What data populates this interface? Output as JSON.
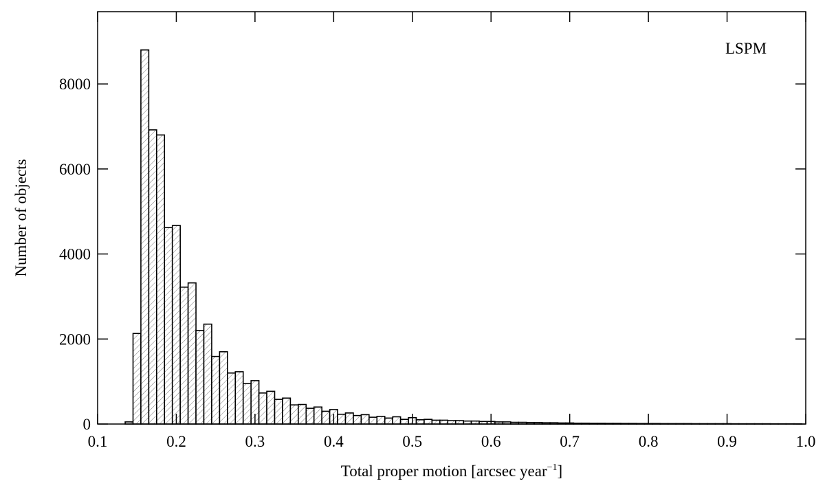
{
  "chart_data": {
    "type": "histogram",
    "xlabel": [
      "Total proper motion [arcsec year",
      "−1",
      "]"
    ],
    "ylabel": "Number of objects",
    "annotation": "LSPM",
    "color": "#000000",
    "bins": [
      0.135,
      0.145,
      0.155,
      0.165,
      0.175,
      0.185,
      0.195,
      0.205,
      0.215,
      0.225,
      0.235,
      0.245,
      0.255,
      0.265,
      0.275,
      0.285,
      0.295,
      0.305,
      0.315,
      0.325,
      0.335,
      0.345,
      0.355,
      0.365,
      0.375,
      0.385,
      0.395,
      0.405,
      0.415,
      0.425,
      0.435,
      0.445,
      0.455,
      0.465,
      0.475,
      0.485,
      0.495,
      0.505,
      0.515,
      0.525,
      0.535,
      0.545,
      0.555,
      0.565,
      0.575,
      0.585,
      0.595,
      0.605,
      0.615,
      0.625,
      0.635,
      0.645,
      0.655,
      0.665,
      0.675,
      0.685,
      0.695,
      0.705,
      0.715,
      0.725,
      0.735,
      0.745,
      0.755,
      0.765,
      0.775,
      0.785,
      0.795,
      0.805,
      0.815,
      0.825,
      0.835,
      0.845,
      0.855,
      0.865,
      0.875,
      0.885,
      0.895,
      0.905,
      0.915,
      0.925,
      0.935,
      0.945,
      0.955,
      0.965,
      0.975,
      0.985,
      0.995
    ],
    "values": [
      50,
      2130,
      8800,
      6920,
      6800,
      4620,
      4670,
      3220,
      3320,
      2200,
      2350,
      1590,
      1700,
      1200,
      1230,
      950,
      1020,
      730,
      770,
      580,
      610,
      450,
      460,
      370,
      400,
      300,
      340,
      230,
      260,
      200,
      220,
      160,
      180,
      140,
      170,
      110,
      150,
      100,
      110,
      90,
      90,
      80,
      80,
      70,
      70,
      60,
      60,
      50,
      50,
      40,
      40,
      35,
      35,
      30,
      30,
      25,
      25,
      20,
      20,
      18,
      18,
      16,
      16,
      14,
      14,
      12,
      12,
      12,
      10,
      10,
      10,
      10,
      8,
      8,
      8,
      8,
      8,
      6,
      6,
      6,
      6,
      6,
      5,
      5,
      5,
      5
    ],
    "xlim": [
      0.1,
      1
    ],
    "xticks": [
      0.1,
      0.2,
      0.3,
      0.4,
      0.5,
      0.6,
      0.7,
      0.8,
      0.9,
      {
        "value": 1,
        "label": "1.0"
      }
    ],
    "ylim": [
      0,
      9700
    ],
    "yticks": [
      0,
      2000,
      4000,
      6000,
      8000
    ]
  }
}
